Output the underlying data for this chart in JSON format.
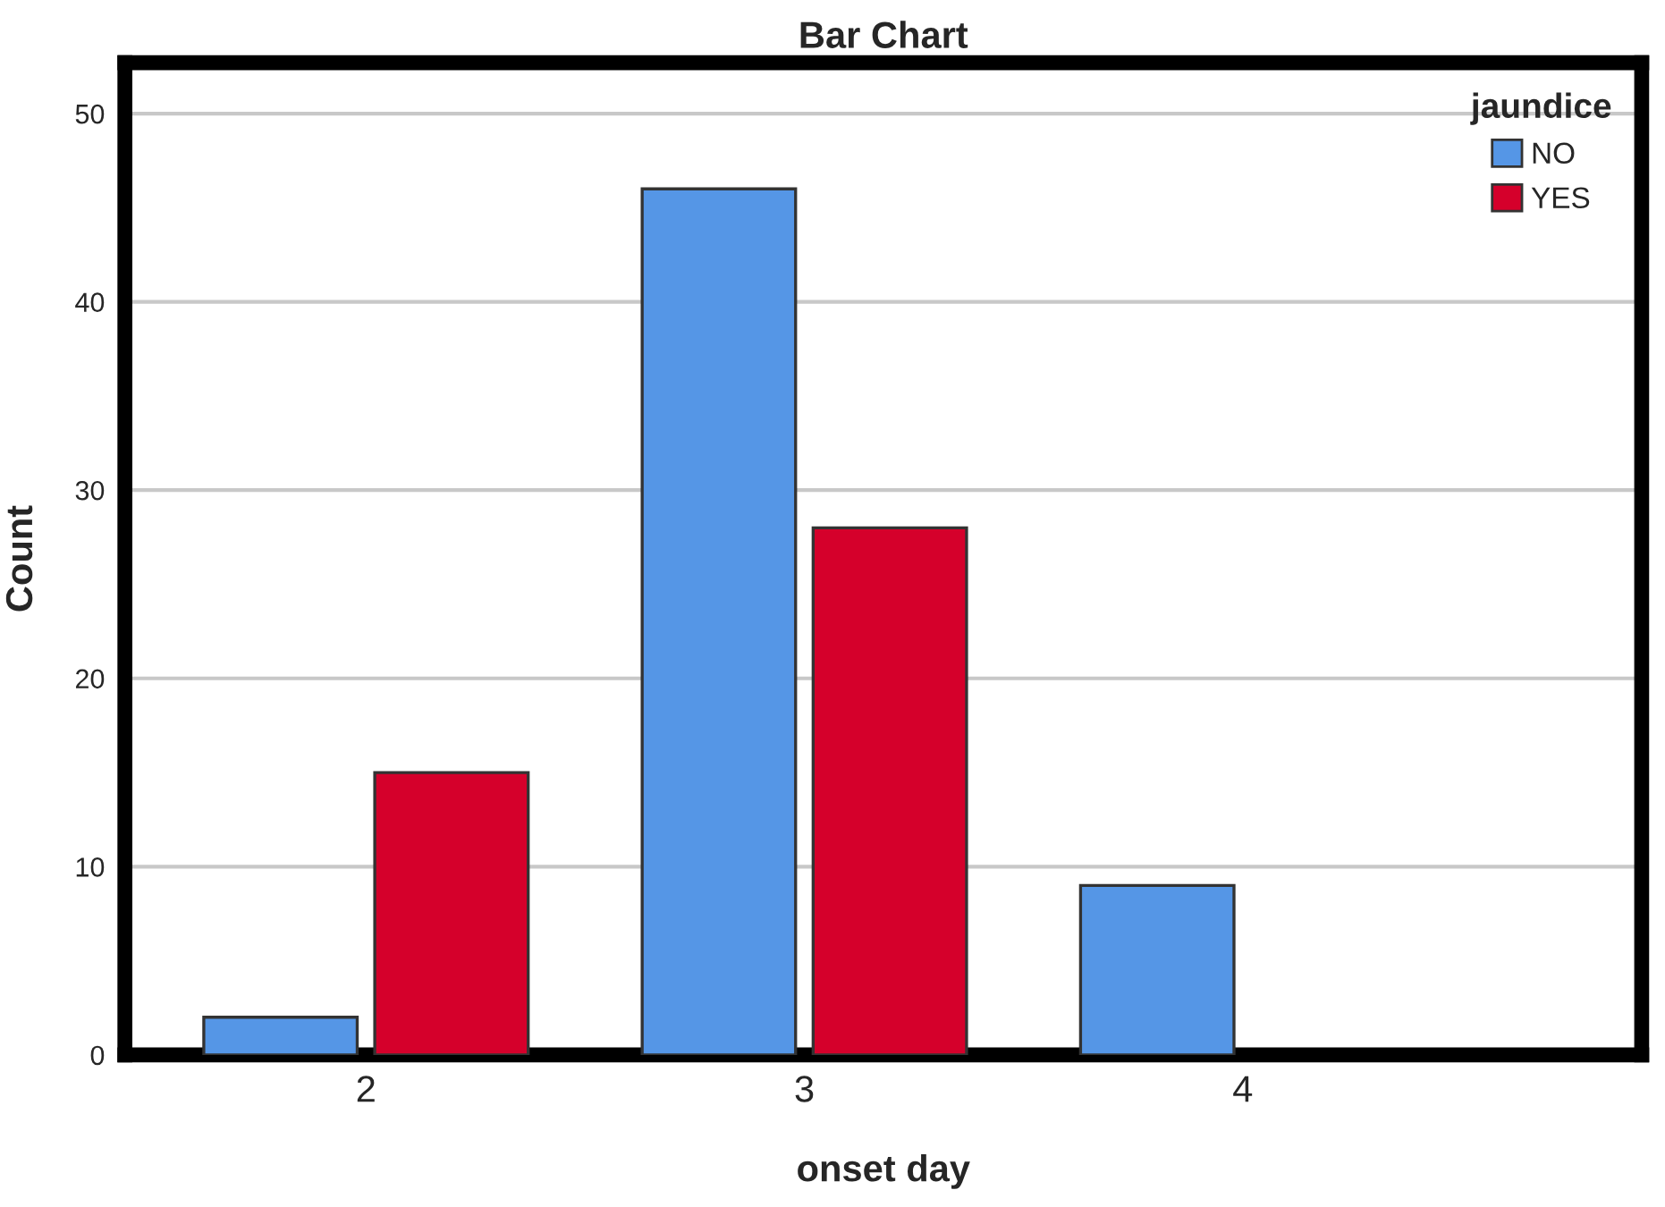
{
  "chart_data": {
    "type": "bar",
    "title": "Bar Chart",
    "xlabel": "onset day",
    "ylabel": "Count",
    "legend_title": "jaundice",
    "categories": [
      "2",
      "3",
      "4"
    ],
    "series": [
      {
        "name": "NO",
        "color": "#5596e6",
        "values": [
          2,
          46,
          9
        ]
      },
      {
        "name": "YES",
        "color": "#d5002b",
        "values": [
          15,
          28,
          null
        ]
      }
    ],
    "ylim": [
      0,
      52.7
    ],
    "yticks": [
      0,
      10,
      20,
      30,
      40,
      50
    ],
    "grid": "y",
    "legend": "top right"
  }
}
